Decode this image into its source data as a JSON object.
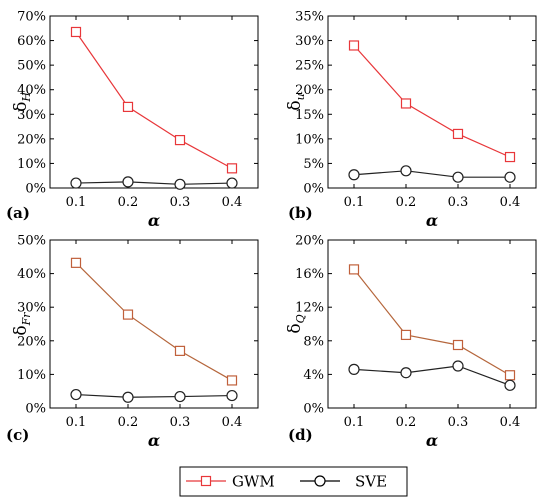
{
  "chart_data": [
    {
      "type": "line",
      "panel_label": "(a)",
      "xlabel": "α",
      "ylabel_main": "δ",
      "ylabel_sub": "H",
      "x": [
        0.1,
        0.2,
        0.3,
        0.4
      ],
      "xticks": [
        "0.1",
        "0.2",
        "0.3",
        "0.4"
      ],
      "ylim": [
        0,
        70
      ],
      "yticks": [
        "0%",
        "10%",
        "20%",
        "30%",
        "40%",
        "50%",
        "60%",
        "70%"
      ],
      "series": [
        {
          "name": "GWM",
          "values": [
            63.5,
            33,
            19.5,
            8
          ]
        },
        {
          "name": "SVE",
          "values": [
            2,
            2.5,
            1.5,
            2
          ]
        }
      ]
    },
    {
      "type": "line",
      "panel_label": "(b)",
      "xlabel": "α",
      "ylabel_main": "δ",
      "ylabel_sub": "u",
      "x": [
        0.1,
        0.2,
        0.3,
        0.4
      ],
      "xticks": [
        "0.1",
        "0.2",
        "0.3",
        "0.4"
      ],
      "ylim": [
        0,
        35
      ],
      "yticks": [
        "0%",
        "5%",
        "10%",
        "15%",
        "20%",
        "25%",
        "30%",
        "35%"
      ],
      "series": [
        {
          "name": "GWM",
          "values": [
            29,
            17.2,
            11,
            6.3
          ]
        },
        {
          "name": "SVE",
          "values": [
            2.7,
            3.5,
            2.2,
            2.2
          ]
        }
      ]
    },
    {
      "type": "line",
      "panel_label": "(c)",
      "xlabel": "α",
      "ylabel_main": "δ",
      "ylabel_sub": "Fr",
      "x": [
        0.1,
        0.2,
        0.3,
        0.4
      ],
      "xticks": [
        "0.1",
        "0.2",
        "0.3",
        "0.4"
      ],
      "ylim": [
        0,
        50
      ],
      "yticks": [
        "0%",
        "10%",
        "20%",
        "30%",
        "40%",
        "50%"
      ],
      "series": [
        {
          "name": "GWM",
          "values": [
            43.2,
            27.8,
            17,
            8.2
          ]
        },
        {
          "name": "SVE",
          "values": [
            4,
            3.2,
            3.4,
            3.7
          ]
        }
      ]
    },
    {
      "type": "line",
      "panel_label": "(d)",
      "xlabel": "α",
      "ylabel_main": "δ",
      "ylabel_sub": "Q",
      "x": [
        0.1,
        0.2,
        0.3,
        0.4
      ],
      "xticks": [
        "0.1",
        "0.2",
        "0.3",
        "0.4"
      ],
      "ylim": [
        0,
        20
      ],
      "yticks": [
        "0%",
        "4%",
        "8%",
        "12%",
        "16%",
        "20%"
      ],
      "series": [
        {
          "name": "GWM",
          "values": [
            16.5,
            8.7,
            7.5,
            3.9
          ]
        },
        {
          "name": "SVE",
          "values": [
            4.6,
            4.2,
            5,
            2.7
          ]
        }
      ]
    }
  ],
  "legend": {
    "placement": "bottom-center",
    "items": [
      {
        "label": "GWM",
        "marker": "square",
        "color": "#e8373a"
      },
      {
        "label": "SVE",
        "marker": "circle",
        "color": "#000000"
      }
    ]
  },
  "colors": {
    "gwm_line_ab": "#e8373a",
    "gwm_line_cd": "#b5663c",
    "gwm_marker_ab": "#e8373a",
    "gwm_marker_cd": "#c0603b",
    "sve": "#222222"
  }
}
